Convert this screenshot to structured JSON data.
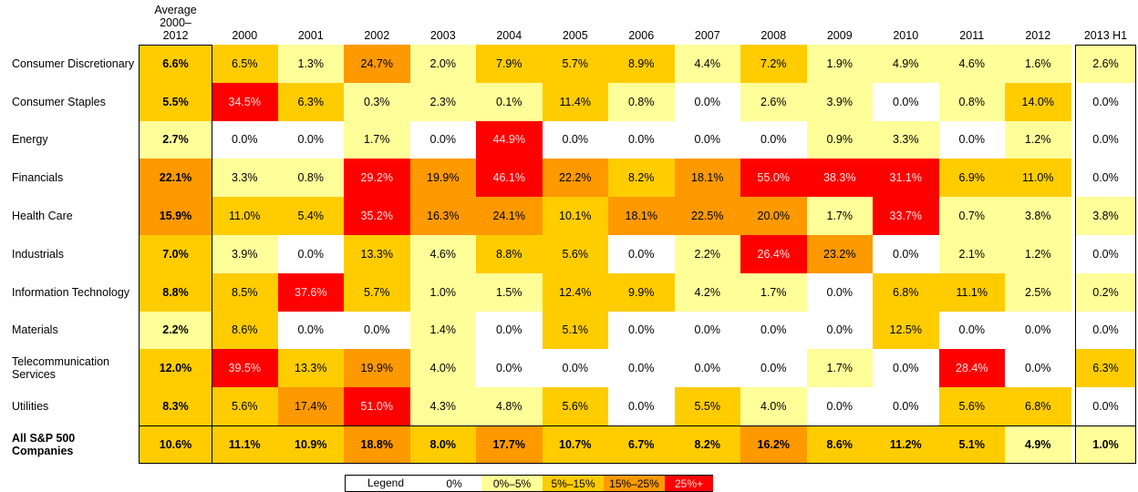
{
  "table": {
    "columns": [
      "Average 2000–2012",
      "2000",
      "2001",
      "2002",
      "2003",
      "2004",
      "2005",
      "2006",
      "2007",
      "2008",
      "2009",
      "2010",
      "2011",
      "2012",
      "2013 H1"
    ],
    "rows": [
      {
        "label": "Consumer Discretionary",
        "cells": [
          "6.6%",
          "6.5%",
          "1.3%",
          "24.7%",
          "2.0%",
          "7.9%",
          "5.7%",
          "8.9%",
          "4.4%",
          "7.2%",
          "1.9%",
          "4.9%",
          "4.6%",
          "1.6%",
          "2.6%"
        ],
        "colors": [
          "#ffcc00",
          "#ffcc00",
          "#ffff99",
          "#ff9900",
          "#ffff99",
          "#ffcc00",
          "#ffcc00",
          "#ffcc00",
          "#ffff99",
          "#ffcc00",
          "#ffff99",
          "#ffff99",
          "#ffff99",
          "#ffff99",
          "#ffff99"
        ]
      },
      {
        "label": "Consumer Staples",
        "cells": [
          "5.5%",
          "34.5%",
          "6.3%",
          "0.3%",
          "2.3%",
          "0.1%",
          "11.4%",
          "0.8%",
          "0.0%",
          "2.6%",
          "3.9%",
          "0.0%",
          "0.8%",
          "14.0%",
          "0.0%"
        ],
        "colors": [
          "#ffcc00",
          "#ff0000",
          "#ffcc00",
          "#ffff99",
          "#ffff99",
          "#ffff99",
          "#ffcc00",
          "#ffff99",
          "#ffffff",
          "#ffff99",
          "#ffff99",
          "#ffffff",
          "#ffff99",
          "#ffcc00",
          "#ffffff"
        ]
      },
      {
        "label": "Energy",
        "cells": [
          "2.7%",
          "0.0%",
          "0.0%",
          "1.7%",
          "0.0%",
          "44.9%",
          "0.0%",
          "0.0%",
          "0.0%",
          "0.0%",
          "0.9%",
          "3.3%",
          "0.0%",
          "1.2%",
          "0.0%"
        ],
        "colors": [
          "#ffff99",
          "#ffffff",
          "#ffffff",
          "#ffff99",
          "#ffffff",
          "#ff0000",
          "#ffffff",
          "#ffffff",
          "#ffffff",
          "#ffffff",
          "#ffff99",
          "#ffff99",
          "#ffffff",
          "#ffff99",
          "#ffffff"
        ]
      },
      {
        "label": "Financials",
        "cells": [
          "22.1%",
          "3.3%",
          "0.8%",
          "29.2%",
          "19.9%",
          "46.1%",
          "22.2%",
          "8.2%",
          "18.1%",
          "55.0%",
          "38.3%",
          "31.1%",
          "6.9%",
          "11.0%",
          "0.0%"
        ],
        "colors": [
          "#ff9900",
          "#ffff99",
          "#ffff99",
          "#ff0000",
          "#ff9900",
          "#ff0000",
          "#ff9900",
          "#ffcc00",
          "#ff9900",
          "#ff0000",
          "#ff0000",
          "#ff0000",
          "#ffcc00",
          "#ffcc00",
          "#ffffff"
        ]
      },
      {
        "label": "Health Care",
        "cells": [
          "15.9%",
          "11.0%",
          "5.4%",
          "35.2%",
          "16.3%",
          "24.1%",
          "10.1%",
          "18.1%",
          "22.5%",
          "20.0%",
          "1.7%",
          "33.7%",
          "0.7%",
          "3.8%",
          "3.8%"
        ],
        "colors": [
          "#ff9900",
          "#ffcc00",
          "#ffcc00",
          "#ff0000",
          "#ff9900",
          "#ff9900",
          "#ffcc00",
          "#ff9900",
          "#ff9900",
          "#ff9900",
          "#ffff99",
          "#ff0000",
          "#ffff99",
          "#ffff99",
          "#ffff99"
        ]
      },
      {
        "label": "Industrials",
        "cells": [
          "7.0%",
          "3.9%",
          "0.0%",
          "13.3%",
          "4.6%",
          "8.8%",
          "5.6%",
          "0.0%",
          "2.2%",
          "26.4%",
          "23.2%",
          "0.0%",
          "2.1%",
          "1.2%",
          "0.0%"
        ],
        "colors": [
          "#ffcc00",
          "#ffff99",
          "#ffffff",
          "#ffcc00",
          "#ffff99",
          "#ffcc00",
          "#ffcc00",
          "#ffffff",
          "#ffff99",
          "#ff0000",
          "#ff9900",
          "#ffffff",
          "#ffff99",
          "#ffff99",
          "#ffffff"
        ]
      },
      {
        "label": "Information Technology",
        "cells": [
          "8.8%",
          "8.5%",
          "37.6%",
          "5.7%",
          "1.0%",
          "1.5%",
          "12.4%",
          "9.9%",
          "4.2%",
          "1.7%",
          "0.0%",
          "6.8%",
          "11.1%",
          "2.5%",
          "0.2%"
        ],
        "colors": [
          "#ffcc00",
          "#ffcc00",
          "#ff0000",
          "#ffcc00",
          "#ffff99",
          "#ffff99",
          "#ffcc00",
          "#ffcc00",
          "#ffff99",
          "#ffff99",
          "#ffffff",
          "#ffcc00",
          "#ffcc00",
          "#ffff99",
          "#ffff99"
        ]
      },
      {
        "label": "Materials",
        "cells": [
          "2.2%",
          "8.6%",
          "0.0%",
          "0.0%",
          "1.4%",
          "0.0%",
          "5.1%",
          "0.0%",
          "0.0%",
          "0.0%",
          "0.0%",
          "12.5%",
          "0.0%",
          "0.0%",
          "0.0%"
        ],
        "colors": [
          "#ffff99",
          "#ffcc00",
          "#ffffff",
          "#ffffff",
          "#ffff99",
          "#ffffff",
          "#ffcc00",
          "#ffffff",
          "#ffffff",
          "#ffffff",
          "#ffffff",
          "#ffcc00",
          "#ffffff",
          "#ffffff",
          "#ffffff"
        ]
      },
      {
        "label": "Telecommunication Services",
        "cells": [
          "12.0%",
          "39.5%",
          "13.3%",
          "19.9%",
          "4.0%",
          "0.0%",
          "0.0%",
          "0.0%",
          "0.0%",
          "0.0%",
          "1.7%",
          "0.0%",
          "28.4%",
          "0.0%",
          "6.3%"
        ],
        "colors": [
          "#ffcc00",
          "#ff0000",
          "#ffcc00",
          "#ff9900",
          "#ffff99",
          "#ffffff",
          "#ffffff",
          "#ffffff",
          "#ffffff",
          "#ffffff",
          "#ffff99",
          "#ffffff",
          "#ff0000",
          "#ffffff",
          "#ffcc00"
        ]
      },
      {
        "label": "Utilities",
        "cells": [
          "8.3%",
          "5.6%",
          "17.4%",
          "51.0%",
          "4.3%",
          "4.8%",
          "5.6%",
          "0.0%",
          "5.5%",
          "4.0%",
          "0.0%",
          "0.0%",
          "5.6%",
          "6.8%",
          "0.0%"
        ],
        "colors": [
          "#ffcc00",
          "#ffcc00",
          "#ff9900",
          "#ff0000",
          "#ffff99",
          "#ffff99",
          "#ffcc00",
          "#ffffff",
          "#ffcc00",
          "#ffff99",
          "#ffffff",
          "#ffffff",
          "#ffcc00",
          "#ffcc00",
          "#ffffff"
        ]
      },
      {
        "label": "All S&P 500 Companies",
        "cells": [
          "10.6%",
          "11.1%",
          "10.9%",
          "18.8%",
          "8.0%",
          "17.7%",
          "10.7%",
          "6.7%",
          "8.2%",
          "16.2%",
          "8.6%",
          "11.2%",
          "5.1%",
          "4.9%",
          "1.0%"
        ],
        "colors": [
          "#ffcc00",
          "#ffcc00",
          "#ffcc00",
          "#ff9900",
          "#ffcc00",
          "#ff9900",
          "#ffcc00",
          "#ffcc00",
          "#ffcc00",
          "#ff9900",
          "#ffcc00",
          "#ffcc00",
          "#ffcc00",
          "#ffff99",
          "#ffff99"
        ]
      }
    ]
  },
  "legend": {
    "title": "Legend",
    "items": [
      {
        "label": "0%",
        "color": "#ffffff"
      },
      {
        "label": "0%–5%",
        "color": "#ffff99"
      },
      {
        "label": "5%–15%",
        "color": "#ffcc00"
      },
      {
        "label": "15%–25%",
        "color": "#ff9900"
      },
      {
        "label": "25%+",
        "color": "#ff0000"
      }
    ]
  }
}
